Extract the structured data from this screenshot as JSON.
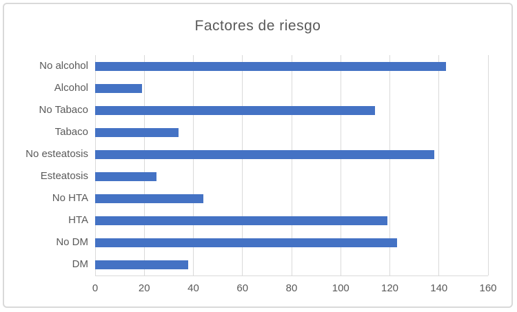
{
  "chart_data": {
    "type": "bar",
    "orientation": "horizontal",
    "title": "Factores de riesgo",
    "categories": [
      "No alcohol",
      "Alcohol",
      "No Tabaco",
      "Tabaco",
      "No esteatosis",
      "Esteatosis",
      "No HTA",
      "HTA",
      "No DM",
      "DM"
    ],
    "values": [
      143,
      19,
      114,
      34,
      138,
      25,
      44,
      119,
      123,
      38
    ],
    "xlabel": "",
    "ylabel": "",
    "xlim": [
      0,
      160
    ],
    "x_ticks": [
      0,
      20,
      40,
      60,
      80,
      100,
      120,
      140,
      160
    ],
    "grid": "vertical-only",
    "legend": "none",
    "colors": {
      "bar": "#4472C4",
      "text": "#595959",
      "gridline": "#D9D9D9",
      "frame_border": "#D9D9D9",
      "background": "#FFFFFF"
    }
  }
}
